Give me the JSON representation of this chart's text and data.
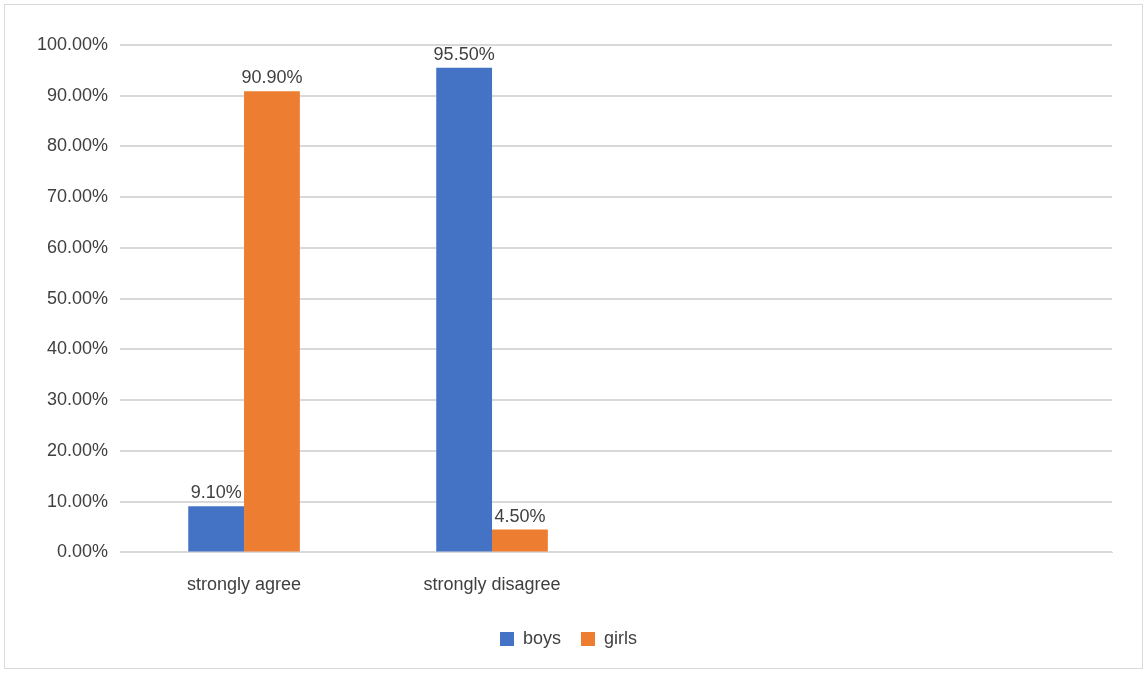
{
  "chart_data": {
    "type": "bar",
    "categories": [
      "strongly agree",
      "strongly disagree",
      null,
      null
    ],
    "series": [
      {
        "name": "boys",
        "color": "#4472c4",
        "values": [
          9.1,
          95.5,
          null,
          null
        ],
        "value_labels": [
          "9.10%",
          "95.50%",
          null,
          null
        ]
      },
      {
        "name": "girls",
        "color": "#ed7d31",
        "values": [
          90.9,
          4.5,
          null,
          null
        ],
        "value_labels": [
          "90.90%",
          "4.50%",
          null,
          null
        ]
      }
    ],
    "ylim": [
      0,
      100
    ],
    "yticks": [
      {
        "value": 0,
        "label": "0.00%"
      },
      {
        "value": 10,
        "label": "10.00%"
      },
      {
        "value": 20,
        "label": "20.00%"
      },
      {
        "value": 30,
        "label": "30.00%"
      },
      {
        "value": 40,
        "label": "40.00%"
      },
      {
        "value": 50,
        "label": "50.00%"
      },
      {
        "value": 60,
        "label": "60.00%"
      },
      {
        "value": 70,
        "label": "70.00%"
      },
      {
        "value": 80,
        "label": "80.00%"
      },
      {
        "value": 90,
        "label": "90.00%"
      },
      {
        "value": 100,
        "label": "100.00%"
      }
    ],
    "grid": "y",
    "legend": "bottom"
  }
}
